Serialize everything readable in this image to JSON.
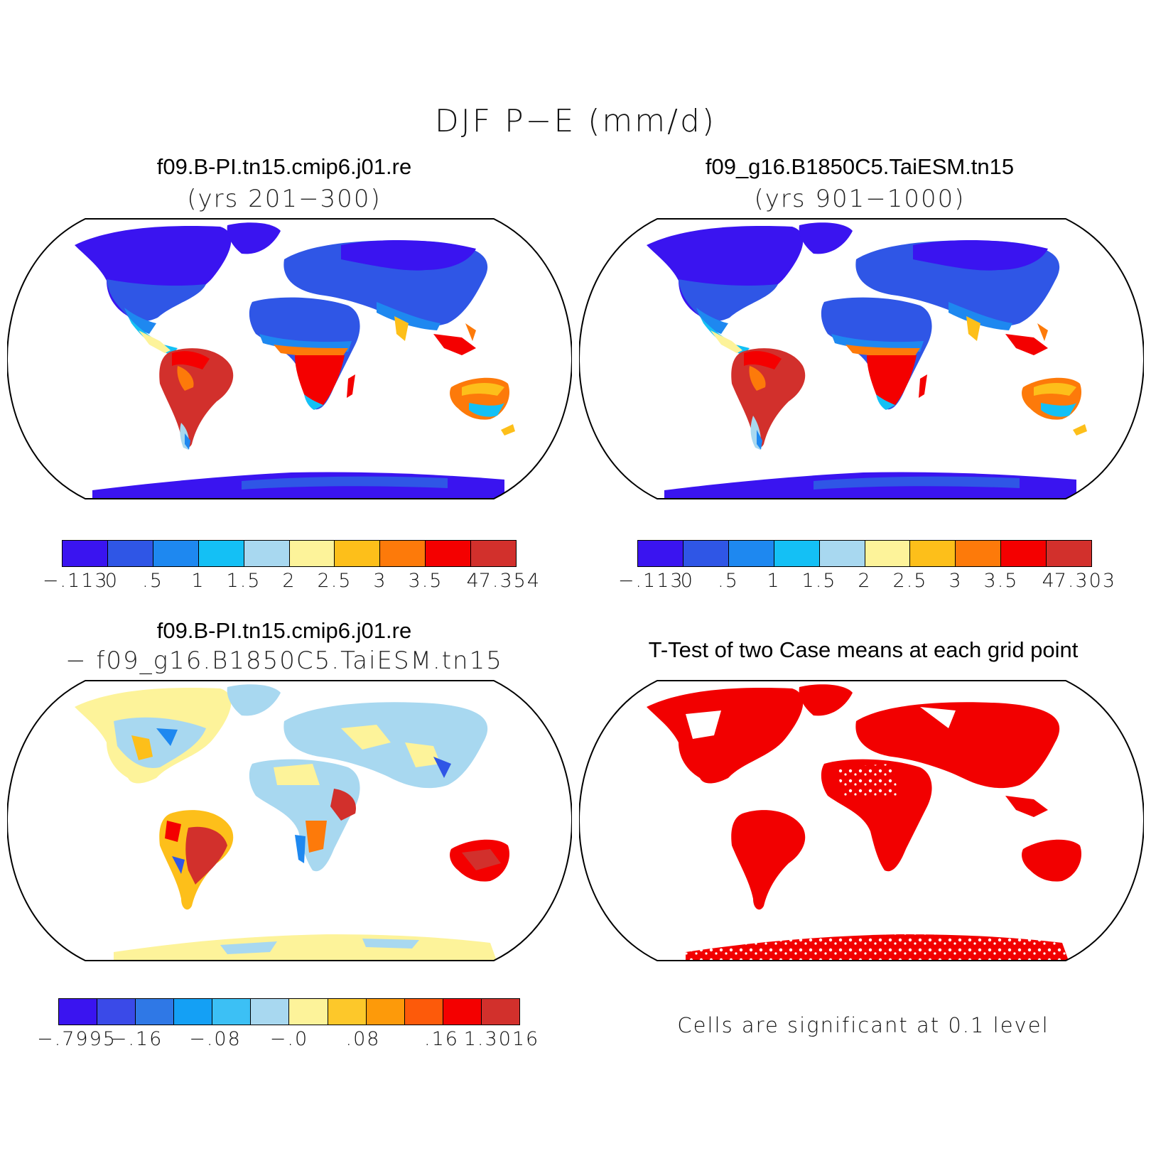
{
  "figure": {
    "title": "DJF P−E (mm/d)",
    "colors": {
      "deep_blue": "#3a14f0",
      "blue": "#2f56e6",
      "mid_blue": "#1e88f0",
      "light_blue": "#14c0f5",
      "pale_blue": "#a8d8f0",
      "yellow": "#fdf39a",
      "gold": "#fdbf1a",
      "orange": "#fd7a0a",
      "red": "#f40000",
      "dark_red": "#d2302c",
      "sig_red": "#f20000"
    }
  },
  "panels": {
    "a": {
      "title": "f09.B-PI.tn15.cmip6.j01.re",
      "subtitle": "(yrs 201−300)",
      "colorbar": {
        "colors": [
          "#3a14f0",
          "#2f56e6",
          "#1e88f0",
          "#14c0f5",
          "#a8d8f0",
          "#fdf39a",
          "#fdbf1a",
          "#fd7a0a",
          "#f40000",
          "#d2302c"
        ],
        "labels": [
          "−.113",
          "0",
          ".5",
          "1",
          "1.5",
          "2",
          "2.5",
          "3",
          "3.5",
          "4",
          "7.354"
        ]
      }
    },
    "b": {
      "title": "f09_g16.B1850C5.TaiESM.tn15",
      "subtitle": "(yrs 901−1000)",
      "colorbar": {
        "colors": [
          "#3a14f0",
          "#2f56e6",
          "#1e88f0",
          "#14c0f5",
          "#a8d8f0",
          "#fdf39a",
          "#fdbf1a",
          "#fd7a0a",
          "#f40000",
          "#d2302c"
        ],
        "labels": [
          "−.113",
          "0",
          ".5",
          "1",
          "1.5",
          "2",
          "2.5",
          "3",
          "3.5",
          "4",
          "7.303"
        ]
      }
    },
    "c": {
      "title": "f09.B-PI.tn15.cmip6.j01.re",
      "subtitle": "− f09_g16.B1850C5.TaiESM.tn15",
      "colorbar": {
        "colors": [
          "#3a14f0",
          "#3a4ae8",
          "#2f78e6",
          "#14a0f5",
          "#3cc0f5",
          "#a8d8f0",
          "#fdf39a",
          "#fdc82a",
          "#fd9a0a",
          "#fd5a0a",
          "#f40000",
          "#d2302c"
        ],
        "labels": [
          "−.7995",
          "−.16",
          "−.08",
          "−.0",
          ".08",
          ".16",
          "1.3016"
        ]
      }
    },
    "d": {
      "title": "T-Test of two Case means at each grid point",
      "note": "Cells are significant at 0.1 level"
    }
  }
}
